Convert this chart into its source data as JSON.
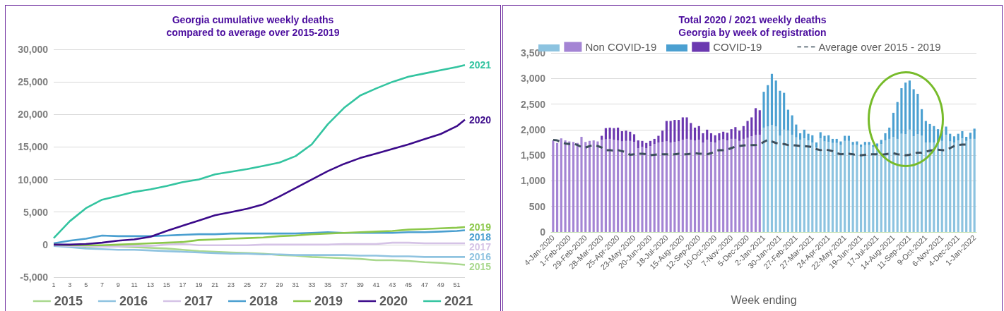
{
  "chart_data": [
    {
      "type": "line",
      "title": "Georgia cumulative weekly deaths\ncompared to average over 2015-2019",
      "x": [
        1,
        3,
        5,
        7,
        9,
        11,
        13,
        15,
        17,
        19,
        21,
        23,
        25,
        27,
        29,
        31,
        33,
        35,
        37,
        39,
        41,
        43,
        45,
        47,
        49,
        51,
        52
      ],
      "xlim": [
        1,
        52
      ],
      "xticks": [
        1,
        3,
        5,
        7,
        9,
        11,
        13,
        15,
        17,
        19,
        21,
        23,
        25,
        27,
        29,
        31,
        33,
        35,
        37,
        39,
        41,
        43,
        45,
        47,
        49,
        51
      ],
      "ylim": [
        -5000,
        30000
      ],
      "yticks": [
        {
          "value": -5000,
          "label": "-5,000"
        },
        {
          "value": 0,
          "label": "0"
        },
        {
          "value": 5000,
          "label": "5,000"
        },
        {
          "value": 10000,
          "label": "10,000"
        },
        {
          "value": 15000,
          "label": "15,000"
        },
        {
          "value": 20000,
          "label": "20,000"
        },
        {
          "value": 25000,
          "label": "25,000"
        },
        {
          "value": 30000,
          "label": "30,000"
        }
      ],
      "grid": "y",
      "legend": "bottom",
      "marker": "none",
      "line_style": "solid",
      "series": [
        {
          "name": "2015",
          "color": "#a9d88e",
          "values": [
            -100,
            -200,
            -300,
            -300,
            -300,
            -400,
            -500,
            -600,
            -800,
            -1000,
            -1100,
            -1200,
            -1300,
            -1400,
            -1600,
            -1700,
            -1900,
            -2000,
            -2100,
            -2200,
            -2400,
            -2400,
            -2500,
            -2700,
            -2800,
            -3000,
            -3100
          ]
        },
        {
          "name": "2016",
          "color": "#8fc3e0",
          "values": [
            -200,
            -400,
            -600,
            -700,
            -800,
            -800,
            -900,
            -1000,
            -1100,
            -1200,
            -1300,
            -1400,
            -1400,
            -1500,
            -1500,
            -1600,
            -1600,
            -1600,
            -1600,
            -1700,
            -1700,
            -1800,
            -1800,
            -1900,
            -1900,
            -1900,
            -1900
          ]
        },
        {
          "name": "2017",
          "color": "#d5c3e6",
          "values": [
            -100,
            -200,
            -200,
            -300,
            -300,
            -200,
            -200,
            0,
            100,
            -100,
            -100,
            -100,
            -100,
            0,
            0,
            0,
            0,
            0,
            100,
            100,
            100,
            300,
            300,
            200,
            200,
            200,
            200
          ]
        },
        {
          "name": "2018",
          "color": "#4a9fd0",
          "values": [
            200,
            600,
            900,
            1400,
            1300,
            1300,
            1300,
            1400,
            1500,
            1600,
            1600,
            1700,
            1700,
            1700,
            1700,
            1700,
            1800,
            1900,
            1800,
            1800,
            1800,
            1800,
            1900,
            1900,
            2000,
            2100,
            2200
          ]
        },
        {
          "name": "2019",
          "color": "#8cc84b",
          "values": [
            0,
            -100,
            -100,
            -100,
            0,
            100,
            200,
            300,
            400,
            700,
            800,
            900,
            1000,
            1100,
            1300,
            1400,
            1600,
            1700,
            1800,
            1900,
            2000,
            2100,
            2300,
            2400,
            2500,
            2600,
            2700
          ]
        },
        {
          "name": "2020",
          "color": "#3b0a8a",
          "values": [
            0,
            0,
            100,
            300,
            600,
            800,
            1200,
            2100,
            2900,
            3700,
            4500,
            5000,
            5500,
            6200,
            7400,
            8700,
            10000,
            11300,
            12400,
            13300,
            14000,
            14700,
            15400,
            16200,
            17000,
            18200,
            19200
          ]
        },
        {
          "name": "2021",
          "color": "#33c4a0",
          "values": [
            1000,
            3600,
            5600,
            6900,
            7500,
            8100,
            8500,
            9000,
            9600,
            10000,
            10800,
            11200,
            11600,
            12100,
            12600,
            13600,
            15400,
            18500,
            21000,
            22900,
            24000,
            25000,
            25800,
            26300,
            26800,
            27300,
            27600
          ]
        }
      ]
    },
    {
      "type": "bar",
      "title": "Total 2020 / 2021 weekly deaths\nGeorgia by week of registration",
      "xlabel": "Week ending",
      "categories": [
        "4-Jan-2020",
        null,
        null,
        null,
        "1-Feb-2020",
        null,
        null,
        null,
        "29-Feb-2020",
        null,
        null,
        null,
        "28-Mar-2020",
        null,
        null,
        null,
        "25-Apr-2020",
        null,
        null,
        null,
        "23-May-2020",
        null,
        null,
        null,
        "20-Jun-2020",
        null,
        null,
        null,
        "18-Jul-2020",
        null,
        null,
        null,
        "15-Aug-2020",
        null,
        null,
        null,
        "12-Sep-2020",
        null,
        null,
        null,
        "10-Oct-2020",
        null,
        null,
        null,
        "7-Nov-2020",
        null,
        null,
        null,
        "5-Dec-2020",
        null,
        null,
        null,
        "2-Jan-2021",
        null,
        null,
        null,
        "30-Jan-2021",
        null,
        null,
        null,
        "27-Feb-2021",
        null,
        null,
        null,
        "27-Mar-2021",
        null,
        null,
        null,
        "24-Apr-2021",
        null,
        null,
        null,
        "22-May-2021",
        null,
        null,
        null,
        "19-Jun-2021",
        null,
        null,
        null,
        "17-Jul-2021",
        null,
        null,
        null,
        "14-Aug-2021",
        null,
        null,
        null,
        "11-Sep-2021",
        null,
        null,
        null,
        "9-Oct-2021",
        null,
        null,
        null,
        "6-Nov-2021",
        null,
        null,
        null,
        "4-Dec-2021",
        null,
        null,
        null,
        "1-Jan-2022"
      ],
      "ylim": [
        0,
        3500
      ],
      "yticks": [
        0,
        500,
        {
          "value": 1000,
          "label": "1,000"
        },
        {
          "value": 1500,
          "label": "1,500"
        },
        {
          "value": 2000,
          "label": "2,000"
        },
        {
          "value": 2500,
          "label": "2,500"
        },
        {
          "value": 3000,
          "label": "3,000"
        },
        {
          "value": 3500,
          "label": "3,500"
        }
      ],
      "stacked": true,
      "grid": "y",
      "legend": "top",
      "marker": "none",
      "series": [
        {
          "name": "Non COVID-19",
          "color": "#a484d4",
          "colors": [
            "#a484d4",
            "#a484d4",
            "#a484d4",
            "#a484d4",
            "#a484d4",
            "#a484d4",
            "#a484d4",
            "#a484d4",
            "#a484d4",
            "#a484d4",
            "#a484d4",
            "#a484d4",
            "#a484d4",
            "#a484d4",
            "#a484d4",
            "#a484d4",
            "#a484d4",
            "#a484d4",
            "#a484d4",
            "#a484d4",
            "#a484d4",
            "#a484d4",
            "#a484d4",
            "#a484d4",
            "#a484d4",
            "#a484d4",
            "#a484d4",
            "#a484d4",
            "#a484d4",
            "#a484d4",
            "#a484d4",
            "#a484d4",
            "#a484d4",
            "#a484d4",
            "#a484d4",
            "#a484d4",
            "#a484d4",
            "#a484d4",
            "#a484d4",
            "#a484d4",
            "#a484d4",
            "#a484d4",
            "#a484d4",
            "#a484d4",
            "#a484d4",
            "#a484d4",
            "#a484d4",
            "#a484d4",
            "#a484d4",
            "#a484d4",
            "#a484d4",
            "#a484d4",
            "#8cc3e0",
            "#8cc3e0",
            "#8cc3e0",
            "#8cc3e0",
            "#8cc3e0",
            "#8cc3e0",
            "#8cc3e0",
            "#8cc3e0",
            "#8cc3e0",
            "#8cc3e0",
            "#8cc3e0",
            "#8cc3e0",
            "#8cc3e0",
            "#8cc3e0",
            "#8cc3e0",
            "#8cc3e0",
            "#8cc3e0",
            "#8cc3e0",
            "#8cc3e0",
            "#8cc3e0",
            "#8cc3e0",
            "#8cc3e0",
            "#8cc3e0",
            "#8cc3e0",
            "#8cc3e0",
            "#8cc3e0",
            "#8cc3e0",
            "#8cc3e0",
            "#8cc3e0",
            "#8cc3e0",
            "#8cc3e0",
            "#8cc3e0",
            "#8cc3e0",
            "#8cc3e0",
            "#8cc3e0",
            "#8cc3e0",
            "#8cc3e0",
            "#8cc3e0",
            "#8cc3e0",
            "#8cc3e0",
            "#8cc3e0",
            "#8cc3e0",
            "#8cc3e0",
            "#8cc3e0",
            "#8cc3e0",
            "#8cc3e0",
            "#8cc3e0",
            "#8cc3e0",
            "#8cc3e0",
            "#8cc3e0",
            "#8cc3e0",
            "#8cc3e0",
            "#8cc3e0"
          ],
          "values": [
            1790,
            1740,
            1830,
            1790,
            1770,
            1760,
            1740,
            1860,
            1760,
            1780,
            1790,
            1770,
            1800,
            1810,
            1820,
            1800,
            1790,
            1770,
            1780,
            1780,
            1760,
            1640,
            1660,
            1640,
            1680,
            1720,
            1750,
            1760,
            1770,
            1750,
            1760,
            1770,
            1800,
            1820,
            1800,
            1790,
            1800,
            1750,
            1800,
            1760,
            1750,
            1790,
            1810,
            1790,
            1820,
            1820,
            1780,
            1820,
            1840,
            1870,
            1900,
            1900,
            2040,
            2060,
            2090,
            2060,
            1880,
            2000,
            1980,
            1900,
            1850,
            1800,
            1830,
            1790,
            1750,
            1650,
            1830,
            1770,
            1760,
            1740,
            1740,
            1700,
            1780,
            1780,
            1700,
            1700,
            1660,
            1700,
            1700,
            1660,
            1670,
            1720,
            1790,
            1820,
            1860,
            1820,
            1920,
            1910,
            2000,
            1870,
            1910,
            1880,
            1750,
            1750,
            1750,
            1750,
            1780,
            1900,
            1770,
            1750,
            1790,
            1830,
            1780,
            1820,
            1820
          ]
        },
        {
          "name": "COVID-19",
          "color": "#6b38b0",
          "colors": [
            "#6b38b0",
            "#6b38b0",
            "#6b38b0",
            "#6b38b0",
            "#6b38b0",
            "#6b38b0",
            "#6b38b0",
            "#6b38b0",
            "#6b38b0",
            "#6b38b0",
            "#6b38b0",
            "#6b38b0",
            "#6b38b0",
            "#6b38b0",
            "#6b38b0",
            "#6b38b0",
            "#6b38b0",
            "#6b38b0",
            "#6b38b0",
            "#6b38b0",
            "#6b38b0",
            "#6b38b0",
            "#6b38b0",
            "#6b38b0",
            "#6b38b0",
            "#6b38b0",
            "#6b38b0",
            "#6b38b0",
            "#6b38b0",
            "#6b38b0",
            "#6b38b0",
            "#6b38b0",
            "#6b38b0",
            "#6b38b0",
            "#6b38b0",
            "#6b38b0",
            "#6b38b0",
            "#6b38b0",
            "#6b38b0",
            "#6b38b0",
            "#6b38b0",
            "#6b38b0",
            "#6b38b0",
            "#6b38b0",
            "#6b38b0",
            "#6b38b0",
            "#6b38b0",
            "#6b38b0",
            "#6b38b0",
            "#6b38b0",
            "#6b38b0",
            "#6b38b0",
            "#4ba0d1",
            "#4ba0d1",
            "#4ba0d1",
            "#4ba0d1",
            "#4ba0d1",
            "#4ba0d1",
            "#4ba0d1",
            "#4ba0d1",
            "#4ba0d1",
            "#4ba0d1",
            "#4ba0d1",
            "#4ba0d1",
            "#4ba0d1",
            "#4ba0d1",
            "#4ba0d1",
            "#4ba0d1",
            "#4ba0d1",
            "#4ba0d1",
            "#4ba0d1",
            "#4ba0d1",
            "#4ba0d1",
            "#4ba0d1",
            "#4ba0d1",
            "#4ba0d1",
            "#4ba0d1",
            "#4ba0d1",
            "#4ba0d1",
            "#4ba0d1",
            "#4ba0d1",
            "#4ba0d1",
            "#4ba0d1",
            "#4ba0d1",
            "#4ba0d1",
            "#4ba0d1",
            "#4ba0d1",
            "#4ba0d1",
            "#4ba0d1",
            "#4ba0d1",
            "#4ba0d1",
            "#4ba0d1",
            "#4ba0d1",
            "#4ba0d1",
            "#4ba0d1",
            "#4ba0d1",
            "#4ba0d1",
            "#4ba0d1",
            "#4ba0d1",
            "#4ba0d1",
            "#4ba0d1",
            "#4ba0d1",
            "#4ba0d1",
            "#4ba0d1",
            "#4ba0d1"
          ],
          "values": [
            0,
            0,
            0,
            0,
            0,
            0,
            0,
            0,
            0,
            0,
            0,
            0,
            80,
            220,
            220,
            230,
            250,
            200,
            200,
            180,
            150,
            150,
            120,
            100,
            100,
            100,
            130,
            220,
            400,
            420,
            430,
            420,
            440,
            420,
            330,
            250,
            270,
            180,
            200,
            170,
            140,
            140,
            150,
            150,
            190,
            230,
            200,
            250,
            330,
            370,
            520,
            480,
            700,
            810,
            1000,
            900,
            880,
            720,
            410,
            380,
            250,
            130,
            170,
            130,
            140,
            100,
            120,
            110,
            130,
            80,
            80,
            70,
            100,
            100,
            60,
            70,
            50,
            60,
            60,
            40,
            60,
            80,
            140,
            220,
            470,
            720,
            890,
            1010,
            960,
            920,
            790,
            520,
            420,
            360,
            320,
            260,
            200,
            160,
            150,
            120,
            130,
            140,
            80,
            120,
            200
          ]
        },
        {
          "name": "Average over 2015 - 2019",
          "type": "line",
          "color": "#3d4f5c",
          "line_style": "dashed",
          "values": [
            1800,
            1790,
            1760,
            1730,
            1720,
            1730,
            1700,
            1660,
            1650,
            1680,
            1700,
            1680,
            1650,
            1600,
            1600,
            1590,
            1600,
            1580,
            1560,
            1510,
            1520,
            1530,
            1530,
            1520,
            1500,
            1510,
            1520,
            1520,
            1520,
            1510,
            1520,
            1530,
            1520,
            1520,
            1530,
            1540,
            1530,
            1530,
            1520,
            1540,
            1580,
            1600,
            1600,
            1610,
            1640,
            1670,
            1680,
            1690,
            1700,
            1700,
            1700,
            1710,
            1760,
            1800,
            1770,
            1740,
            1720,
            1720,
            1700,
            1700,
            1690,
            1680,
            1680,
            1670,
            1660,
            1620,
            1600,
            1610,
            1600,
            1580,
            1540,
            1520,
            1530,
            1530,
            1520,
            1500,
            1500,
            1510,
            1520,
            1520,
            1520,
            1510,
            1520,
            1530,
            1540,
            1520,
            1510,
            1500,
            1510,
            1540,
            1550,
            1550,
            1570,
            1590,
            1600,
            1610,
            1600,
            1600,
            1640,
            1680,
            1700,
            1710,
            1710,
            null,
            null
          ]
        }
      ]
    }
  ]
}
